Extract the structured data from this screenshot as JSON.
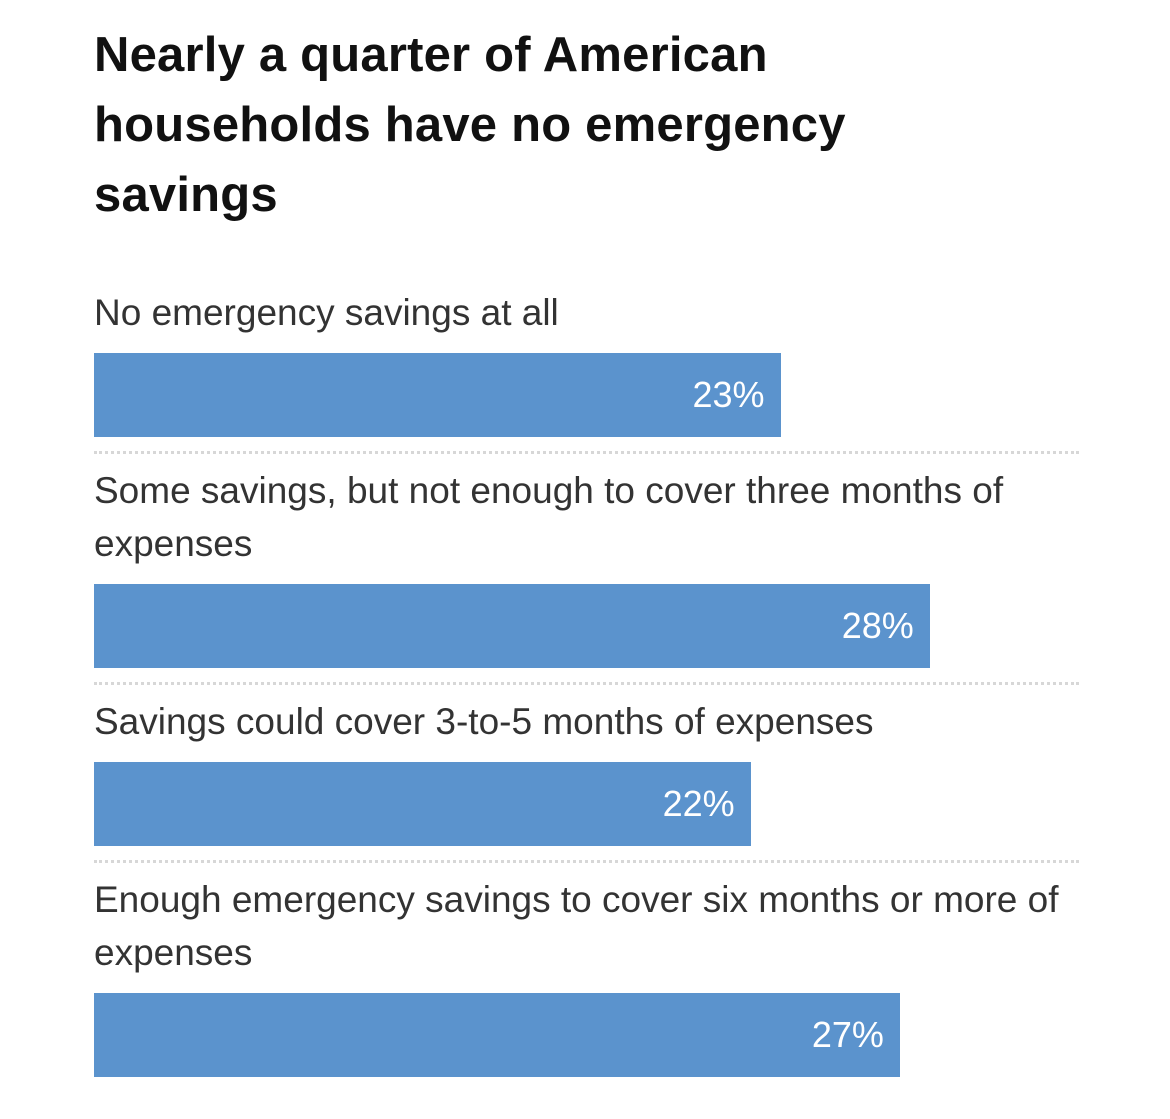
{
  "chart_data": {
    "type": "bar",
    "orientation": "horizontal",
    "title": "Nearly a quarter of American households have no emergency savings",
    "categories": [
      "No emergency savings at all",
      "Some savings, but not enough to cover three months of expenses",
      "Savings could cover 3-to-5 months of expenses",
      "Enough emergency savings to cover six months or more of expenses"
    ],
    "values": [
      23,
      28,
      22,
      27
    ],
    "value_labels": [
      "23%",
      "28%",
      "22%",
      "27%"
    ],
    "xlim": [
      0,
      33
    ],
    "grid": false,
    "bar_color": "#5b93cd",
    "value_label_color": "#ffffff"
  }
}
